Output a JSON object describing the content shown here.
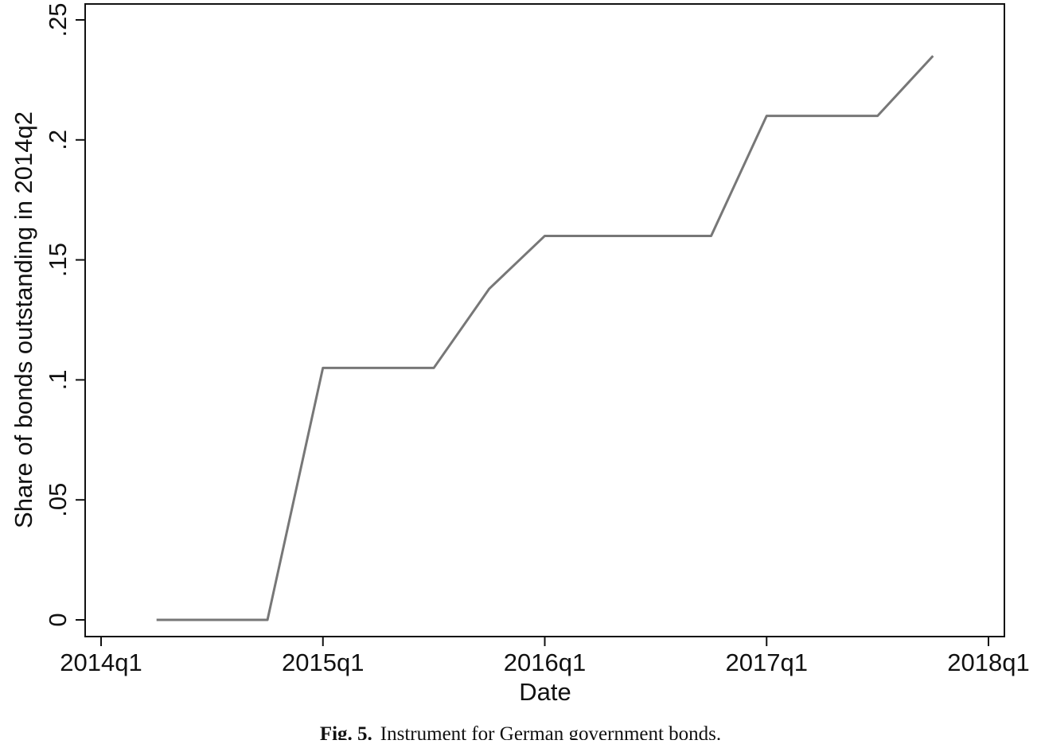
{
  "chart_data": {
    "type": "line",
    "x_label": "Date",
    "y_label": "Share of bonds outstanding in 2014q2",
    "x": [
      "2014q2",
      "2014q3",
      "2014q4",
      "2015q1",
      "2015q2",
      "2015q3",
      "2015q4",
      "2016q1",
      "2016q2",
      "2016q3",
      "2016q4",
      "2017q1",
      "2017q2",
      "2017q3",
      "2017q4"
    ],
    "series": [
      {
        "color": "#777777",
        "values": [
          0,
          0,
          0,
          0.105,
          0.105,
          0.105,
          0.138,
          0.16,
          0.16,
          0.16,
          0.16,
          0.21,
          0.21,
          0.21,
          0.235
        ]
      }
    ],
    "xlim": [
      "2014q1",
      "2018q1"
    ],
    "xticks": [
      "2014q1",
      "2015q1",
      "2016q1",
      "2017q1",
      "2018q1"
    ],
    "ylim": [
      0,
      0.25
    ],
    "yticks": [
      0,
      {
        "value": 0.05,
        "label": ".05"
      },
      {
        "value": 0.1,
        "label": ".1"
      },
      {
        "value": 0.15,
        "label": ".15"
      },
      {
        "value": 0.2,
        "label": ".2"
      },
      {
        "value": 0.25,
        "label": ".25"
      }
    ],
    "grid": false
  },
  "caption_label": "Fig. 5.",
  "caption": "Instrument for German government bonds."
}
